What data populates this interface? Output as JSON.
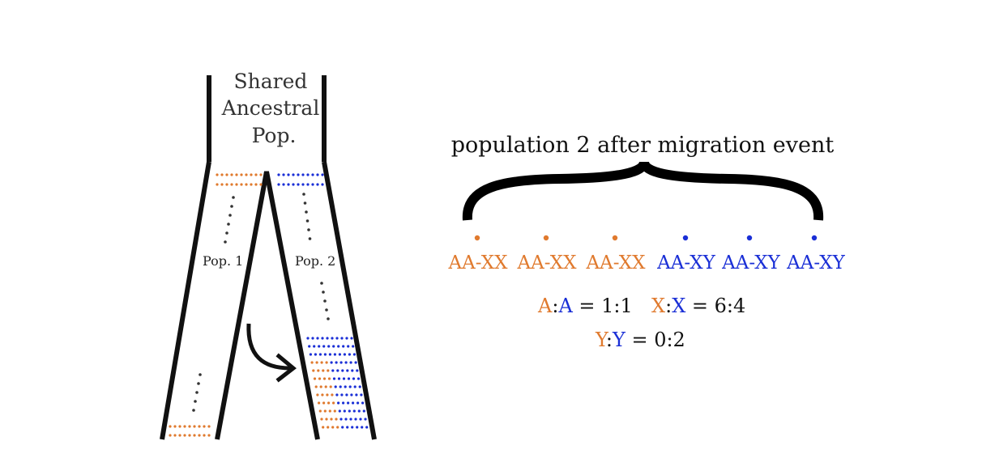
{
  "colors": {
    "orange": "#e07a2e",
    "blue": "#1a2fd6",
    "dark": "#111111",
    "dot_gray": "#333333"
  },
  "left_panel": {
    "ancestral_label": [
      "Shared",
      "Ancestral",
      "Pop."
    ],
    "pop1_label": "Pop. 1",
    "pop2_label": "Pop. 2",
    "migration_arrow_icon": "curved-arrow-right"
  },
  "right_panel": {
    "title": "population 2 after migration event",
    "individuals": [
      {
        "genotype": "AA-XX",
        "color": "#e07a2e"
      },
      {
        "genotype": "AA-XX",
        "color": "#e07a2e"
      },
      {
        "genotype": "AA-XX",
        "color": "#e07a2e"
      },
      {
        "genotype": "AA-XY",
        "color": "#1a2fd6"
      },
      {
        "genotype": "AA-XY",
        "color": "#1a2fd6"
      },
      {
        "genotype": "AA-XY",
        "color": "#1a2fd6"
      }
    ],
    "ratio_a": {
      "first": "A",
      "sep": ":",
      "second": "A",
      "rest": " = 1:1"
    },
    "ratio_x": {
      "first": "X",
      "sep": ":",
      "second": "X",
      "rest": " = 6:4"
    },
    "ratio_y": {
      "first": "Y",
      "sep": ":",
      "second": "Y",
      "rest": " = 0:2"
    }
  }
}
